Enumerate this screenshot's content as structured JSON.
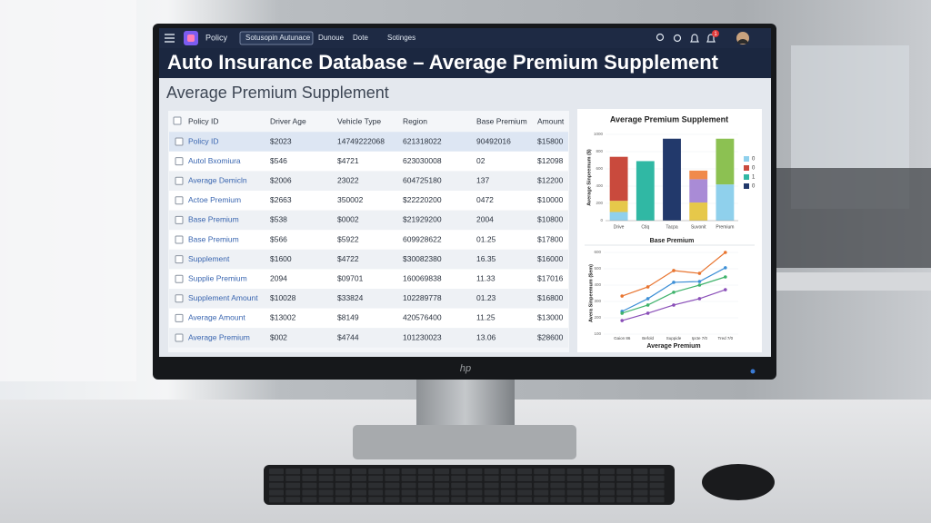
{
  "nav": {
    "menu": "Policy",
    "search": "Sotusopin Autunace",
    "links": [
      "Dunoue",
      "Dote",
      "Sotinges"
    ],
    "badge": "1"
  },
  "brand": "hp",
  "header": {
    "title": "Auto Insurance Database – Average Premium Supplement",
    "subtitle": "Average Premium Supplement"
  },
  "table": {
    "columns": [
      "Policy ID",
      "Driver Age",
      "Vehicle Type",
      "Region",
      "Base Premium",
      "Amount"
    ],
    "rows": [
      [
        "Policy ID",
        "$2023",
        "14749222068",
        "621318022",
        "90492016",
        "$15800"
      ],
      [
        "Autol Bxomiura",
        "$546",
        "$4721",
        "623030008",
        "02",
        "$12098"
      ],
      [
        "Average Demicln",
        "$2006",
        "23022",
        "604725180",
        "137",
        "$12200"
      ],
      [
        "Actoe Premium",
        "$2663",
        "350002",
        "$22220200",
        "0472",
        "$10000"
      ],
      [
        "Base Premium",
        "$538",
        "$0002",
        "$21929200",
        "2004",
        "$10800"
      ],
      [
        "Base Premium",
        "$566",
        "$5922",
        "609928622",
        "01.25",
        "$17800"
      ],
      [
        "Supplement",
        "$1600",
        "$4722",
        "$30082380",
        "16.35",
        "$16000"
      ],
      [
        "Supplie Premium",
        "2094",
        "$09701",
        "160069838",
        "11.33",
        "$17016"
      ],
      [
        "Supplement Amount",
        "$10028",
        "$33824",
        "102289778",
        "01.23",
        "$16800"
      ],
      [
        "Average Amount",
        "$13002",
        "$8149",
        "420576400",
        "11.25",
        "$13000"
      ],
      [
        "Average Premium",
        "$002",
        "$4744",
        "101230023",
        "13.06",
        "$28600"
      ]
    ]
  },
  "chart_data": [
    {
      "type": "bar",
      "stacked": true,
      "title": "Average Premium Supplement",
      "x_label": "Base Premium",
      "y_label": "Average Sinpeemum ($)",
      "categories": [
        "Drive",
        "Ctiq",
        "Tacpa",
        "Suvonit",
        "Premium"
      ],
      "ylim": [
        0,
        1000
      ],
      "yticks": [
        0,
        200,
        400,
        600,
        800,
        1000
      ],
      "series": [
        {
          "name": "0",
          "color": "#8fd0ec",
          "values": [
            100,
            null,
            null,
            null,
            420
          ]
        },
        {
          "color": "#e6c84a",
          "values": [
            130,
            null,
            null,
            210,
            null
          ]
        },
        {
          "name": "0",
          "color": "#c94a3d",
          "values": [
            510,
            null,
            null,
            null,
            null
          ]
        },
        {
          "name": "1",
          "color": "#30b8a4",
          "values": [
            null,
            690,
            null,
            null,
            null
          ]
        },
        {
          "name": "0",
          "color": "#22396b",
          "values": [
            null,
            null,
            950,
            null,
            null
          ]
        },
        {
          "color": "#a98bd6",
          "values": [
            null,
            null,
            null,
            270,
            null
          ]
        },
        {
          "color": "#f08a4b",
          "values": [
            null,
            null,
            null,
            100,
            null
          ]
        },
        {
          "color": "#8cc152",
          "values": [
            null,
            null,
            null,
            null,
            530
          ]
        }
      ]
    },
    {
      "type": "line",
      "x_label": "Average Premium",
      "y_label": "Avera Sinpeemum ($em)",
      "categories": [
        "Gaion 86",
        "Befold",
        "Suppide",
        "Ipcte 7/0",
        "Tred 7/0"
      ],
      "ylim": [
        100,
        600
      ],
      "yticks": [
        100,
        200,
        300,
        400,
        500,
        600
      ],
      "series": [
        {
          "color": "#e8742f",
          "values": [
            333,
            389,
            489,
            472,
            600
          ]
        },
        {
          "color": "#3d8fd6",
          "values": [
            239,
            317,
            417,
            422,
            506
          ]
        },
        {
          "color": "#3fb36b",
          "values": [
            228,
            278,
            356,
            400,
            450
          ]
        },
        {
          "color": "#8a4fb8",
          "values": [
            183,
            228,
            278,
            317,
            372
          ]
        }
      ]
    }
  ]
}
